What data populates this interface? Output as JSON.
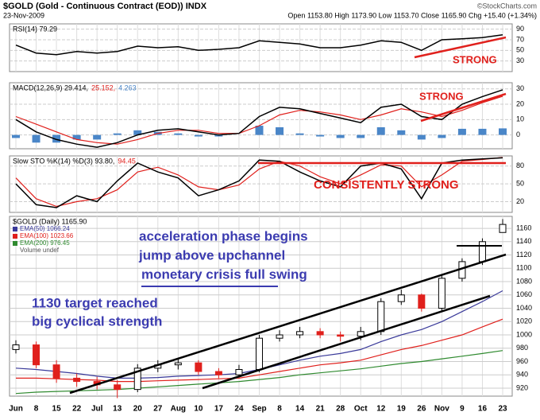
{
  "header": {
    "title": "$GOLD (Gold - Continuous Contract (EOD)) INDX",
    "date": "23-Nov-2009",
    "quote": "Open 1153.80 High 1173.90 Low 1153.70 Close 1165.90 Chg +15.40 (+1.34%)",
    "credit": "©StockCharts.com"
  },
  "chart_data": [
    {
      "type": "line",
      "ylim": [
        10,
        100
      ],
      "yticks": [
        30,
        50,
        70,
        90
      ],
      "annotations": [
        "STRONG"
      ],
      "series": [
        {
          "name": "RSI(14) 79.29",
          "color": "#000000",
          "values": [
            60,
            45,
            42,
            48,
            45,
            48,
            58,
            55,
            57,
            50,
            52,
            55,
            68,
            65,
            62,
            55,
            55,
            60,
            68,
            65,
            50,
            70,
            72,
            74,
            79.29
          ]
        }
      ]
    },
    {
      "type": "macd",
      "ylim": [
        -9,
        34
      ],
      "yticks": [
        0,
        10,
        20,
        30
      ],
      "annotations": [
        "STRONG"
      ],
      "series": [
        {
          "name": "MACD(12,26,9) 29.414,",
          "color": "#000000",
          "values": [
            10,
            2,
            -3,
            -6,
            -8,
            -5,
            0,
            3,
            4,
            2,
            0,
            1,
            12,
            18,
            17,
            14,
            11,
            8,
            18,
            20,
            12,
            10,
            20,
            25,
            29.414
          ]
        },
        {
          "name": "25.152,",
          "color": "#e0201c",
          "values": [
            12,
            7,
            2,
            -3,
            -5,
            -6,
            -3,
            1,
            3,
            3,
            1,
            1,
            6,
            13,
            16,
            15,
            13,
            10,
            13,
            17,
            15,
            12,
            16,
            21,
            25.152
          ]
        },
        {
          "name": "4.263",
          "color": "#4a86c8",
          "values": [
            -2,
            -5,
            -5,
            -3,
            -3,
            1,
            3,
            2,
            1,
            -1,
            -1,
            0,
            6,
            5,
            1,
            -1,
            -2,
            -2,
            5,
            3,
            -3,
            -2,
            4,
            4,
            4.263
          ]
        }
      ]
    },
    {
      "type": "line",
      "ylim": [
        2,
        97
      ],
      "yticks": [
        20,
        50,
        80
      ],
      "annotations": [
        "CONSISTENTLY STRONG"
      ],
      "series": [
        {
          "name": "Slow STO %K(14) %D(3) 93.80,",
          "color": "#000000",
          "values": [
            50,
            15,
            10,
            30,
            20,
            55,
            85,
            70,
            60,
            30,
            40,
            55,
            90,
            88,
            70,
            55,
            45,
            80,
            85,
            75,
            25,
            85,
            90,
            92,
            93.8
          ]
        },
        {
          "name": "94.45",
          "color": "#e0201c",
          "values": [
            60,
            25,
            12,
            20,
            25,
            40,
            70,
            78,
            65,
            45,
            40,
            48,
            75,
            88,
            80,
            62,
            50,
            65,
            82,
            80,
            45,
            65,
            88,
            91,
            94.45
          ]
        }
      ]
    },
    {
      "type": "candlestick",
      "name": "$GOLD (Daily) 1165.90",
      "ylim": [
        908,
        1178
      ],
      "yticks": [
        920,
        940,
        960,
        980,
        1000,
        1020,
        1040,
        1060,
        1080,
        1100,
        1120,
        1140,
        1160
      ],
      "categories": [
        "Jun",
        "8",
        "15",
        "22",
        "Jul",
        "13",
        "20",
        "27",
        "Aug",
        "10",
        "17",
        "24",
        "Sep",
        "8",
        "14",
        "21",
        "28",
        "Oct",
        "12",
        "19",
        "26",
        "Nov",
        "9",
        "16",
        "23"
      ],
      "open": [
        978,
        985,
        955,
        935,
        930,
        925,
        918,
        950,
        955,
        958,
        945,
        940,
        948,
        995,
        1000,
        1005,
        1000,
        998,
        1005,
        1050,
        1060,
        1040,
        1085,
        1110,
        1153.8
      ],
      "high": [
        992,
        990,
        962,
        942,
        937,
        932,
        956,
        962,
        965,
        962,
        950,
        955,
        1000,
        1007,
        1012,
        1010,
        1005,
        1012,
        1055,
        1068,
        1062,
        1090,
        1115,
        1145,
        1173.9
      ],
      "low": [
        972,
        950,
        928,
        922,
        918,
        905,
        914,
        944,
        948,
        940,
        935,
        938,
        944,
        990,
        995,
        995,
        990,
        992,
        1000,
        1045,
        1035,
        1036,
        1080,
        1105,
        1153.7
      ],
      "close": [
        985,
        955,
        935,
        930,
        925,
        918,
        950,
        955,
        958,
        945,
        940,
        948,
        995,
        1000,
        1005,
        1000,
        998,
        1005,
        1050,
        1060,
        1040,
        1085,
        1110,
        1140,
        1165.9
      ],
      "up_color": "#000000",
      "down_color": "#e0201c",
      "series": [
        {
          "name": "EMA(50) 1066.24",
          "color": "#3a3a9a",
          "values": [
            950,
            948,
            945,
            942,
            938,
            935,
            935,
            936,
            938,
            939,
            940,
            942,
            948,
            955,
            962,
            968,
            972,
            978,
            990,
            1000,
            1008,
            1020,
            1035,
            1050,
            1066.24
          ]
        },
        {
          "name": "EMA(100) 1023.66",
          "color": "#e0201c",
          "values": [
            935,
            935,
            934,
            933,
            932,
            930,
            930,
            931,
            932,
            933,
            934,
            935,
            940,
            945,
            950,
            955,
            958,
            962,
            970,
            978,
            984,
            992,
            1000,
            1012,
            1023.66
          ]
        },
        {
          "name": "EMA(200) 976.45",
          "color": "#2f8a2f",
          "values": [
            912,
            914,
            915,
            916,
            917,
            918,
            920,
            922,
            924,
            926,
            928,
            930,
            933,
            936,
            940,
            943,
            946,
            949,
            953,
            957,
            960,
            964,
            968,
            972,
            976.45
          ]
        }
      ],
      "volume_label": "Volume undef",
      "annotations": [
        "acceleration phase begins",
        "jump above upchannel",
        "monetary crisis full swing",
        "1130 target reached",
        "big cyclical strength"
      ]
    }
  ]
}
